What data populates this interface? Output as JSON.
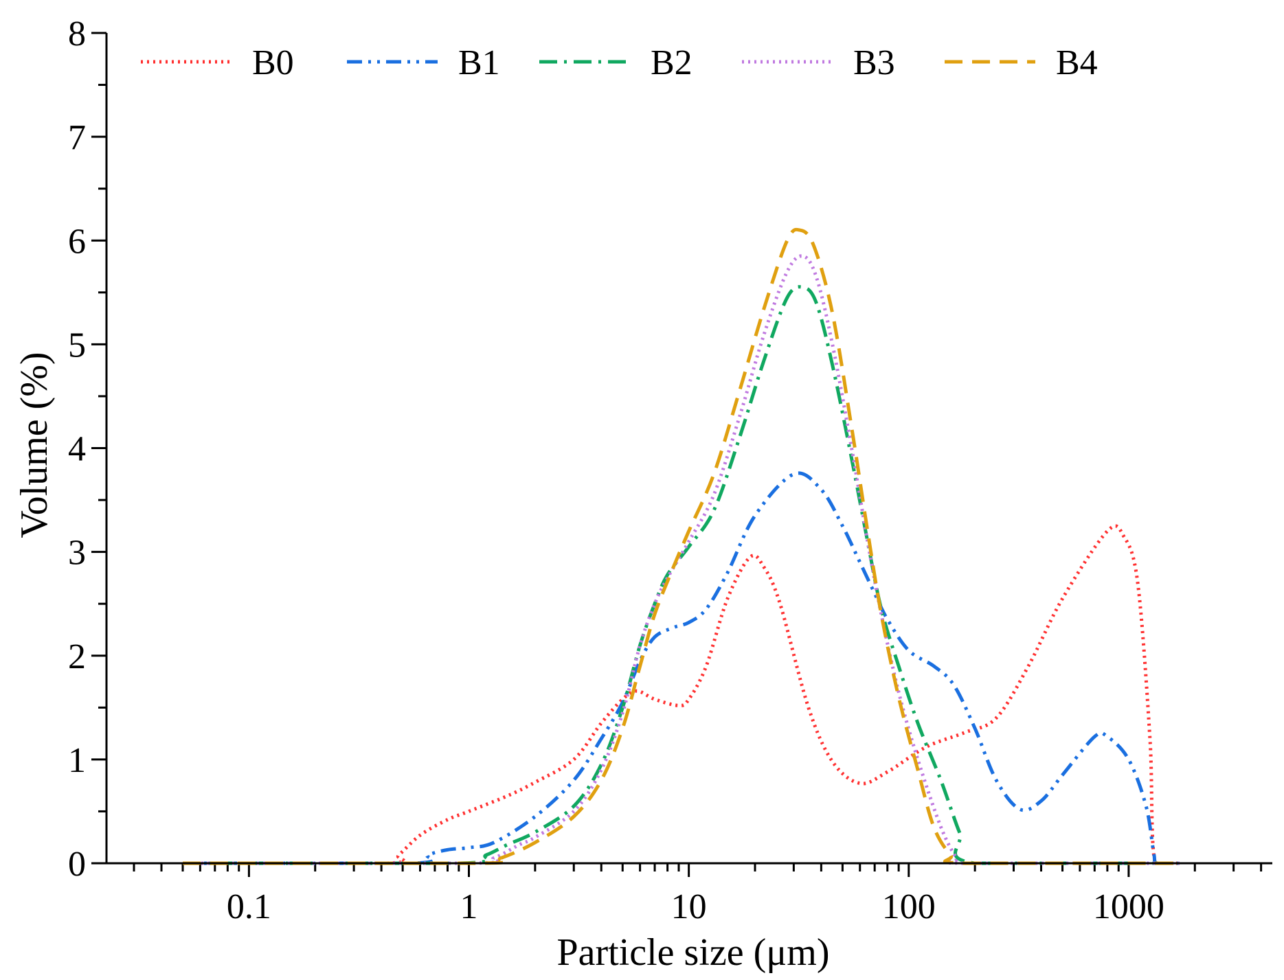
{
  "chart_data": {
    "type": "line",
    "xscale": "log",
    "xlabel": "Particle size (μm)",
    "ylabel": "Volume (%)",
    "xlim": [
      0.0225,
      4500
    ],
    "ylim": [
      0,
      8
    ],
    "xticks": [
      {
        "value": 0.1,
        "label": "0.1"
      },
      {
        "value": 1,
        "label": "1"
      },
      {
        "value": 10,
        "label": "10"
      },
      {
        "value": 100,
        "label": "100"
      },
      {
        "value": 1000,
        "label": "1000"
      }
    ],
    "yticks": [
      {
        "value": 0,
        "label": "0"
      },
      {
        "value": 1,
        "label": "1"
      },
      {
        "value": 2,
        "label": "2"
      },
      {
        "value": 3,
        "label": "3"
      },
      {
        "value": 4,
        "label": "4"
      },
      {
        "value": 5,
        "label": "5"
      },
      {
        "value": 6,
        "label": "6"
      },
      {
        "value": 7,
        "label": "7"
      },
      {
        "value": 8,
        "label": "8"
      }
    ],
    "legend_position": "top",
    "series": [
      {
        "name": "B0",
        "color": "#ff3030",
        "dash": "dotted",
        "points": [
          [
            0.05,
            0
          ],
          [
            0.42,
            0
          ],
          [
            0.48,
            0.08
          ],
          [
            0.6,
            0.27
          ],
          [
            0.8,
            0.42
          ],
          [
            1.0,
            0.5
          ],
          [
            1.5,
            0.65
          ],
          [
            2.0,
            0.78
          ],
          [
            3.0,
            1.0
          ],
          [
            4.0,
            1.35
          ],
          [
            5.0,
            1.58
          ],
          [
            5.8,
            1.66
          ],
          [
            7.0,
            1.58
          ],
          [
            9.0,
            1.52
          ],
          [
            10.0,
            1.58
          ],
          [
            12.0,
            1.9
          ],
          [
            15.0,
            2.55
          ],
          [
            19.0,
            2.95
          ],
          [
            22.0,
            2.85
          ],
          [
            26.0,
            2.5
          ],
          [
            35.0,
            1.5
          ],
          [
            45.0,
            0.98
          ],
          [
            60.0,
            0.77
          ],
          [
            80.0,
            0.88
          ],
          [
            120.0,
            1.12
          ],
          [
            180.0,
            1.26
          ],
          [
            250.0,
            1.4
          ],
          [
            350.0,
            1.9
          ],
          [
            500.0,
            2.55
          ],
          [
            800.0,
            3.2
          ],
          [
            950.0,
            3.15
          ],
          [
            1100.0,
            2.7
          ],
          [
            1250.0,
            1.2
          ],
          [
            1320.0,
            0.0
          ],
          [
            1700.0,
            0
          ]
        ]
      },
      {
        "name": "B1",
        "color": "#1a6fe0",
        "dash": "dashdotdot",
        "points": [
          [
            0.05,
            0
          ],
          [
            0.55,
            0
          ],
          [
            0.65,
            0.08
          ],
          [
            0.8,
            0.13
          ],
          [
            1.0,
            0.15
          ],
          [
            1.3,
            0.2
          ],
          [
            2.0,
            0.45
          ],
          [
            3.0,
            0.8
          ],
          [
            4.0,
            1.2
          ],
          [
            5.0,
            1.55
          ],
          [
            6.0,
            1.95
          ],
          [
            7.0,
            2.18
          ],
          [
            8.5,
            2.27
          ],
          [
            10.0,
            2.32
          ],
          [
            12.0,
            2.45
          ],
          [
            15.0,
            2.8
          ],
          [
            20.0,
            3.35
          ],
          [
            30.0,
            3.75
          ],
          [
            40.0,
            3.6
          ],
          [
            50.0,
            3.25
          ],
          [
            60.0,
            2.9
          ],
          [
            70.0,
            2.6
          ],
          [
            80.0,
            2.35
          ],
          [
            100.0,
            2.05
          ],
          [
            130.0,
            1.9
          ],
          [
            160.0,
            1.72
          ],
          [
            200.0,
            1.3
          ],
          [
            250.0,
            0.8
          ],
          [
            320.0,
            0.52
          ],
          [
            400.0,
            0.6
          ],
          [
            500.0,
            0.85
          ],
          [
            700.0,
            1.22
          ],
          [
            800.0,
            1.22
          ],
          [
            1000.0,
            1.0
          ],
          [
            1200.0,
            0.55
          ],
          [
            1300.0,
            0.1
          ],
          [
            1350.0,
            0
          ],
          [
            1700.0,
            0
          ]
        ]
      },
      {
        "name": "B2",
        "color": "#10a860",
        "dash": "dashdot",
        "points": [
          [
            0.05,
            0
          ],
          [
            0.9,
            0
          ],
          [
            1.2,
            0.08
          ],
          [
            1.5,
            0.18
          ],
          [
            2.0,
            0.3
          ],
          [
            3.0,
            0.55
          ],
          [
            4.0,
            0.95
          ],
          [
            5.0,
            1.5
          ],
          [
            6.0,
            2.1
          ],
          [
            7.0,
            2.5
          ],
          [
            8.0,
            2.78
          ],
          [
            10.0,
            3.05
          ],
          [
            13.0,
            3.4
          ],
          [
            17.0,
            4.1
          ],
          [
            22.0,
            4.85
          ],
          [
            28.0,
            5.45
          ],
          [
            33.0,
            5.55
          ],
          [
            38.0,
            5.4
          ],
          [
            45.0,
            4.8
          ],
          [
            55.0,
            3.9
          ],
          [
            65.0,
            3.1
          ],
          [
            75.0,
            2.45
          ],
          [
            90.0,
            1.9
          ],
          [
            110.0,
            1.35
          ],
          [
            140.0,
            0.8
          ],
          [
            170.0,
            0.3
          ],
          [
            200.0,
            0.0
          ],
          [
            1700.0,
            0
          ]
        ]
      },
      {
        "name": "B3",
        "color": "#c07ae0",
        "dash": "dotted",
        "points": [
          [
            0.05,
            0
          ],
          [
            1.0,
            0
          ],
          [
            1.3,
            0.05
          ],
          [
            1.7,
            0.18
          ],
          [
            2.0,
            0.25
          ],
          [
            3.0,
            0.5
          ],
          [
            4.0,
            0.9
          ],
          [
            5.0,
            1.45
          ],
          [
            6.0,
            2.1
          ],
          [
            7.0,
            2.5
          ],
          [
            8.0,
            2.75
          ],
          [
            10.0,
            3.1
          ],
          [
            13.0,
            3.55
          ],
          [
            17.0,
            4.3
          ],
          [
            22.0,
            5.1
          ],
          [
            28.0,
            5.7
          ],
          [
            33.0,
            5.85
          ],
          [
            38.0,
            5.65
          ],
          [
            45.0,
            5.0
          ],
          [
            55.0,
            4.0
          ],
          [
            65.0,
            3.1
          ],
          [
            75.0,
            2.4
          ],
          [
            90.0,
            1.65
          ],
          [
            110.0,
            1.0
          ],
          [
            140.0,
            0.35
          ],
          [
            165.0,
            0.05
          ],
          [
            180.0,
            0
          ],
          [
            1700.0,
            0
          ]
        ]
      },
      {
        "name": "B4",
        "color": "#e0a010",
        "dash": "dashed",
        "points": [
          [
            0.05,
            0
          ],
          [
            1.1,
            0
          ],
          [
            1.4,
            0.05
          ],
          [
            2.0,
            0.2
          ],
          [
            3.0,
            0.45
          ],
          [
            4.0,
            0.8
          ],
          [
            5.0,
            1.3
          ],
          [
            6.0,
            1.9
          ],
          [
            7.0,
            2.4
          ],
          [
            8.5,
            2.85
          ],
          [
            10.0,
            3.2
          ],
          [
            13.0,
            3.75
          ],
          [
            17.0,
            4.55
          ],
          [
            22.0,
            5.35
          ],
          [
            28.0,
            6.0
          ],
          [
            32.0,
            6.1
          ],
          [
            37.0,
            5.95
          ],
          [
            45.0,
            5.3
          ],
          [
            55.0,
            4.2
          ],
          [
            65.0,
            3.2
          ],
          [
            75.0,
            2.4
          ],
          [
            90.0,
            1.6
          ],
          [
            110.0,
            0.9
          ],
          [
            130.0,
            0.35
          ],
          [
            155.0,
            0.08
          ],
          [
            180.0,
            0
          ],
          [
            1700.0,
            0
          ]
        ]
      }
    ]
  }
}
